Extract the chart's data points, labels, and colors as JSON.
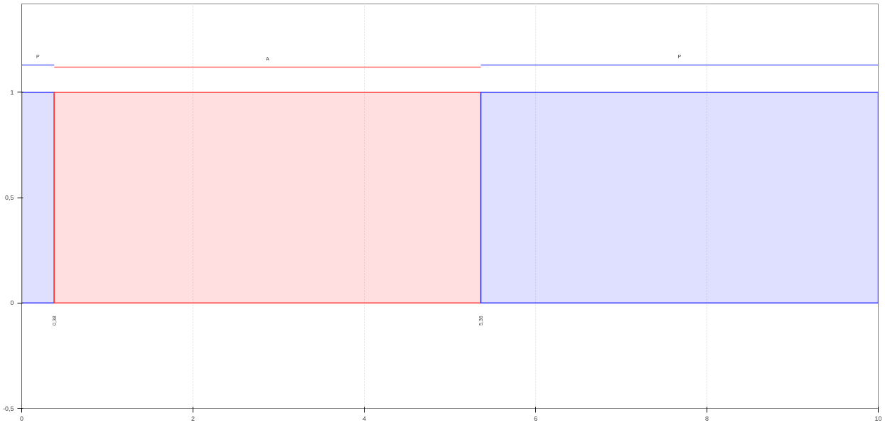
{
  "chart_data": {
    "type": "area",
    "xlim": [
      0,
      10
    ],
    "ylim": [
      -0.5,
      1.42
    ],
    "xticks": [
      0,
      2,
      4,
      6,
      8,
      10
    ],
    "yticks": [
      {
        "value": -0.5,
        "label": "-0,5"
      },
      0,
      {
        "value": 0.5,
        "label": "0,5"
      },
      1
    ],
    "grid": "x",
    "series": [
      {
        "color": "#3a3aff",
        "x": [
          0,
          0.38
        ],
        "values": [
          1,
          1
        ]
      },
      {
        "color": "#ff3a3a",
        "x": [
          0.38,
          5.36
        ],
        "values": [
          1,
          1
        ]
      },
      {
        "color": "#3a3aff",
        "x": [
          5.36,
          10
        ],
        "values": [
          1,
          1
        ]
      },
      {
        "type": "line",
        "color": "#6a6aff",
        "x": [
          0,
          0.38
        ],
        "values": [
          1.13,
          1.13
        ]
      },
      {
        "type": "line",
        "color": "#ff6a6a",
        "x": [
          0.38,
          5.36
        ],
        "values": [
          1.12,
          1.12
        ]
      },
      {
        "type": "line",
        "color": "#6a6aff",
        "x": [
          5.36,
          10
        ],
        "values": [
          1.13,
          1.13
        ]
      }
    ],
    "annotations": [
      "P",
      "A",
      "P",
      "0,38",
      "5,36"
    ]
  }
}
